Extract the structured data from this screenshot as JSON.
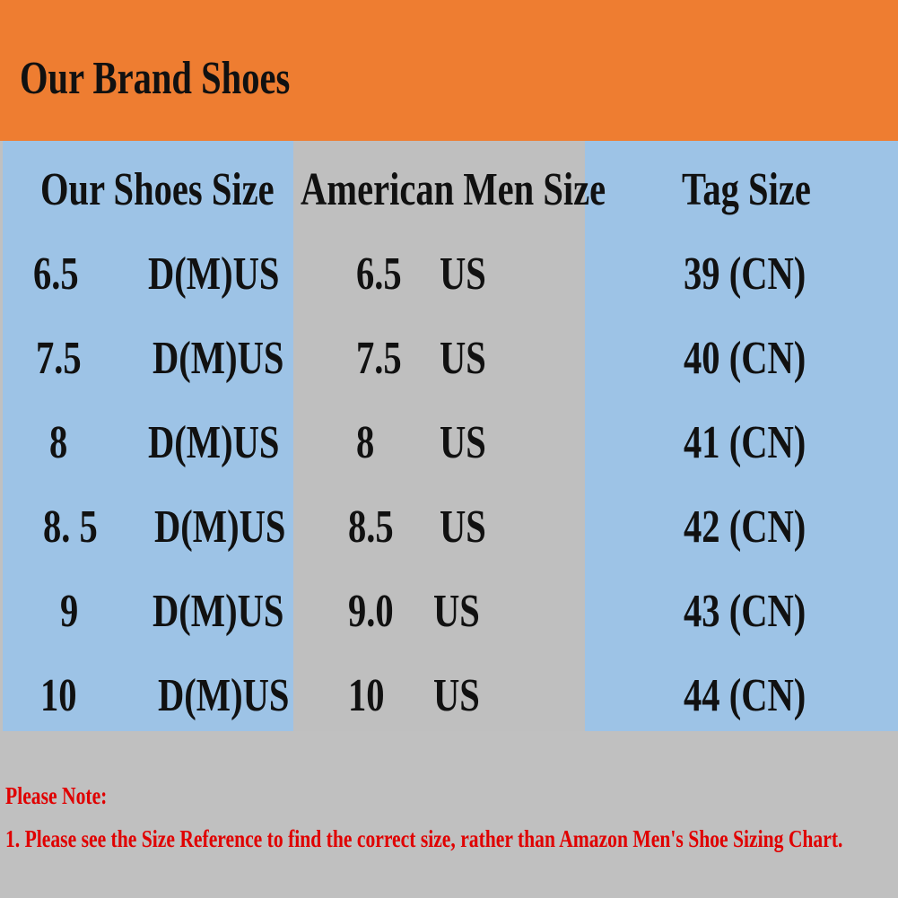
{
  "title": "Our Brand Shoes",
  "columns": [
    "Our Shoes Size",
    "American Men Size",
    "Tag Size"
  ],
  "rows": [
    {
      "our_num": "6.5",
      "our_unit": "D(M)US",
      "us_num": "6.5",
      "us_unit": "US",
      "tag": "39 (CN)"
    },
    {
      "our_num": "7.5",
      "our_unit": "D(M)US",
      "us_num": "7.5",
      "us_unit": "US",
      "tag": "40 (CN)"
    },
    {
      "our_num": "8",
      "our_unit": "D(M)US",
      "us_num": "8",
      "us_unit": "US",
      "tag": "41 (CN)"
    },
    {
      "our_num": "8. 5",
      "our_unit": "D(M)US",
      "us_num": "8.5",
      "us_unit": "US",
      "tag": "42 (CN)"
    },
    {
      "our_num": "9",
      "our_unit": "D(M)US",
      "us_num": "9.0",
      "us_unit": "US",
      "tag": "43 (CN)"
    },
    {
      "our_num": "10",
      "our_unit": "D(M)US",
      "us_num": "10",
      "us_unit": "US",
      "tag": "44 (CN)"
    }
  ],
  "note": {
    "heading": "Please Note:",
    "line1": "1. Please see the Size Reference to find the correct size, rather than Amazon Men's Shoe Sizing Chart."
  },
  "colors": {
    "header": "#ee7d31",
    "blue": "#9dc3e6",
    "gray": "#bfbfbf",
    "note": "#e00000"
  }
}
